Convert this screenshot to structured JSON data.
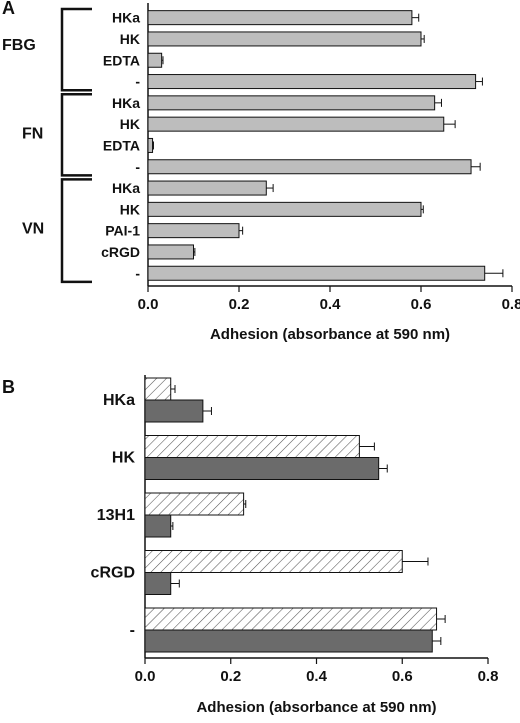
{
  "chart_data": [
    {
      "panel": "A",
      "type": "bar",
      "orientation": "horizontal",
      "xlabel": "Adhesion (absorbance at 590 nm)",
      "xlim": [
        0,
        0.8
      ],
      "xticks": [
        "0.0",
        "0.2",
        "0.4",
        "0.6",
        "0.8"
      ],
      "groups": [
        {
          "label": "FBG",
          "bars": [
            {
              "label": "HKa",
              "value": 0.58,
              "error": 0.015
            },
            {
              "label": "HK",
              "value": 0.6,
              "error": 0.007
            },
            {
              "label": "EDTA",
              "value": 0.03,
              "error": 0.003
            },
            {
              "label": "-",
              "value": 0.72,
              "error": 0.015
            }
          ]
        },
        {
          "label": "FN",
          "bars": [
            {
              "label": "HKa",
              "value": 0.63,
              "error": 0.015
            },
            {
              "label": "HK",
              "value": 0.65,
              "error": 0.025
            },
            {
              "label": "EDTA",
              "value": 0.01,
              "error": 0.002
            },
            {
              "label": "-",
              "value": 0.71,
              "error": 0.02
            }
          ]
        },
        {
          "label": "VN",
          "bars": [
            {
              "label": "HKa",
              "value": 0.26,
              "error": 0.015
            },
            {
              "label": "HK",
              "value": 0.6,
              "error": 0.005
            },
            {
              "label": "PAI-1",
              "value": 0.2,
              "error": 0.008
            },
            {
              "label": "cRGD",
              "value": 0.1,
              "error": 0.003
            },
            {
              "label": "-",
              "value": 0.74,
              "error": 0.04
            }
          ]
        }
      ]
    },
    {
      "panel": "B",
      "type": "bar",
      "orientation": "horizontal",
      "xlabel": "Adhesion (absorbance at 590 nm)",
      "xlim": [
        0,
        0.8
      ],
      "xticks": [
        "0.0",
        "0.2",
        "0.4",
        "0.6",
        "0.8"
      ],
      "categories": [
        "HKa",
        "HK",
        "13H1",
        "cRGD",
        "-"
      ],
      "series": [
        {
          "style": "hatched",
          "values": [
            0.06,
            0.5,
            0.23,
            0.6,
            0.68
          ],
          "errors": [
            0.01,
            0.035,
            0.005,
            0.06,
            0.02
          ]
        },
        {
          "style": "solid",
          "values": [
            0.135,
            0.545,
            0.06,
            0.06,
            0.67
          ],
          "errors": [
            0.02,
            0.02,
            0.005,
            0.02,
            0.02
          ]
        }
      ]
    }
  ],
  "colors": {
    "bar_fill": "#bdbdbd",
    "dark_bar_fill": "#6b6b6b",
    "hatch": "#555555",
    "ink": "#111111"
  }
}
